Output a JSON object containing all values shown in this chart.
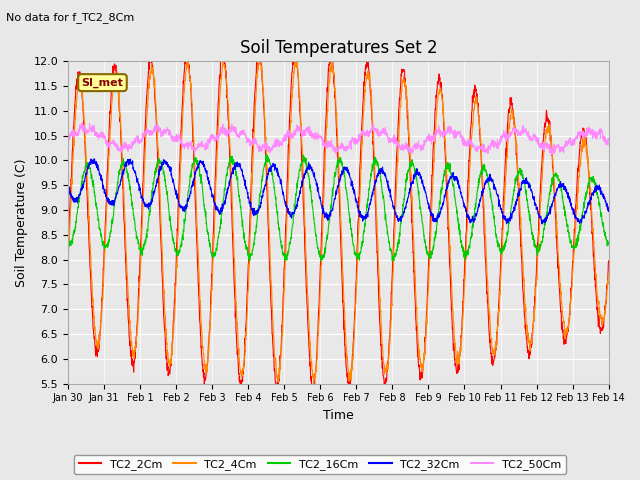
{
  "title": "Soil Temperatures Set 2",
  "subtitle": "No data for f_TC2_8Cm",
  "xlabel": "Time",
  "ylabel": "Soil Temperature (C)",
  "ylim": [
    5.5,
    12.0
  ],
  "yticks": [
    5.5,
    6.0,
    6.5,
    7.0,
    7.5,
    8.0,
    8.5,
    9.0,
    9.5,
    10.0,
    10.5,
    11.0,
    11.5,
    12.0
  ],
  "date_labels": [
    "Jan 30",
    "Jan 31",
    "Feb 1",
    "Feb 2",
    "Feb 3",
    "Feb 4",
    "Feb 5",
    "Feb 6",
    "Feb 7",
    "Feb 8",
    "Feb 9",
    "Feb 10",
    "Feb 11",
    "Feb 12",
    "Feb 13",
    "Feb 14"
  ],
  "series_colors": {
    "TC2_2Cm": "#ff0000",
    "TC2_4Cm": "#ff8800",
    "TC2_16Cm": "#00cc00",
    "TC2_32Cm": "#0000ff",
    "TC2_50Cm": "#ff88ff"
  },
  "legend_label": "SI_met",
  "legend_box_color": "#ffff99",
  "legend_box_border": "#886600",
  "legend_text_color": "#880000",
  "background_color": "#e8e8e8",
  "plot_bg_color": "#e8e8e8",
  "grid_color": "#ffffff"
}
